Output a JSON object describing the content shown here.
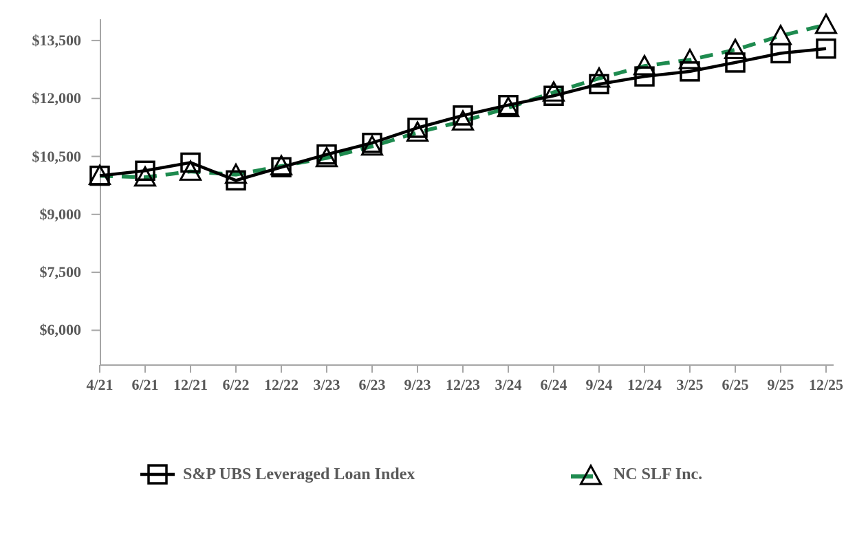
{
  "chart_data": {
    "type": "line",
    "title": "",
    "xlabel": "",
    "ylabel": "",
    "grid": false,
    "legend_position": "bottom",
    "axis_color": "#a6a6a6",
    "label_color": "#595959",
    "ylim": [
      5100,
      14050
    ],
    "categories": [
      "4/21",
      "6/21",
      "12/21",
      "6/22",
      "12/22",
      "3/23",
      "6/23",
      "9/23",
      "12/23",
      "3/24",
      "6/24",
      "9/24",
      "12/24",
      "3/25",
      "6/25",
      "9/25",
      "12/25"
    ],
    "y_ticks": [
      {
        "value": 13500,
        "label": "$13,500"
      },
      {
        "value": 12000,
        "label": "$12,000"
      },
      {
        "value": 10500,
        "label": "$10,500"
      },
      {
        "value": 9000,
        "label": "$9,000"
      },
      {
        "value": 7500,
        "label": "$7,500"
      },
      {
        "value": 6000,
        "label": "$6,000"
      }
    ],
    "series": [
      {
        "name": "S&P UBS Leveraged Loan Index",
        "color": "#000000",
        "style": "solid",
        "marker": "square",
        "values": [
          10000,
          10130,
          10340,
          9880,
          10220,
          10550,
          10850,
          11240,
          11560,
          11830,
          12070,
          12370,
          12570,
          12700,
          12930,
          13170,
          13290
        ]
      },
      {
        "name": "NC SLF Inc.",
        "color": "#1e8b4f",
        "style": "dashed",
        "marker": "triangle",
        "values": [
          10000,
          9960,
          10110,
          10030,
          10250,
          10460,
          10760,
          11120,
          11410,
          11760,
          12160,
          12520,
          12840,
          13000,
          13260,
          13620,
          13910
        ]
      }
    ]
  }
}
